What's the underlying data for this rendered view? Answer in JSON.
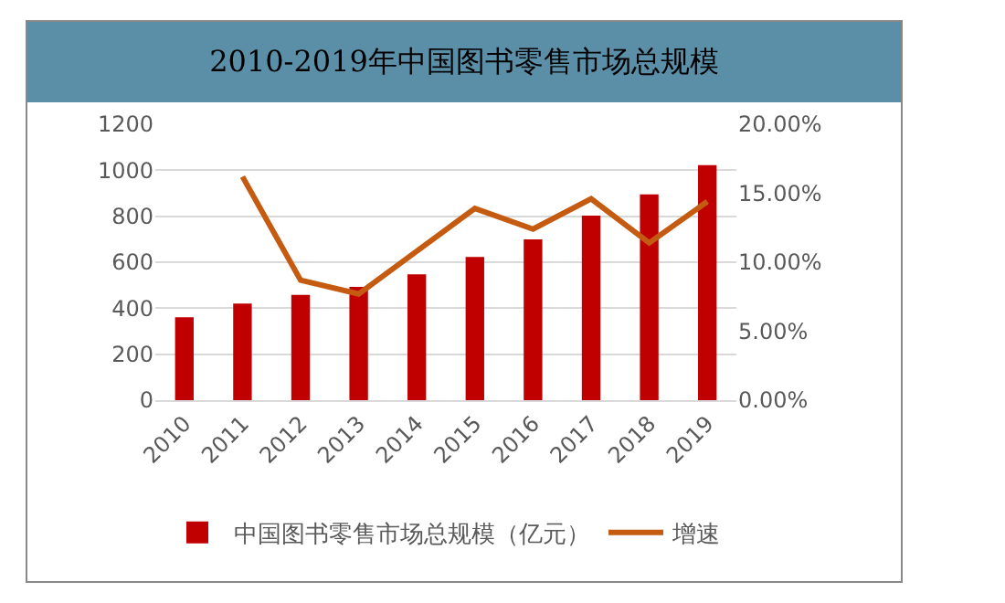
{
  "chart_data": {
    "type": "bar",
    "title": "2010-2019年中国图书零售市场总规模",
    "categories": [
      "2010",
      "2011",
      "2012",
      "2013",
      "2014",
      "2015",
      "2016",
      "2017",
      "2018",
      "2019"
    ],
    "series": [
      {
        "name": "中国图书零售市场总规模（亿元）",
        "color": "#c00000",
        "values": [
          361,
          420,
          458,
          493,
          547,
          623,
          699,
          803,
          895,
          1022
        ]
      },
      {
        "name": "增速",
        "type": "line",
        "axis": "y2",
        "color": "#c55a11",
        "values": [
          null,
          16.2,
          8.7,
          7.7,
          10.8,
          13.9,
          12.4,
          14.6,
          11.4,
          14.4
        ]
      }
    ],
    "ylim": [
      0,
      1200
    ],
    "yticks": [
      0,
      200,
      400,
      600,
      800,
      1000,
      1200
    ],
    "y2lim": [
      0,
      20
    ],
    "y2ticks": [
      {
        "value": 0,
        "label": "0.00%"
      },
      {
        "value": 5,
        "label": "5.00%"
      },
      {
        "value": 10,
        "label": "10.00%"
      },
      {
        "value": 15,
        "label": "15.00%"
      },
      {
        "value": 20,
        "label": "20.00%"
      }
    ],
    "grid": "y",
    "legend": "bottom",
    "marker": "none",
    "line_style": "solid"
  }
}
